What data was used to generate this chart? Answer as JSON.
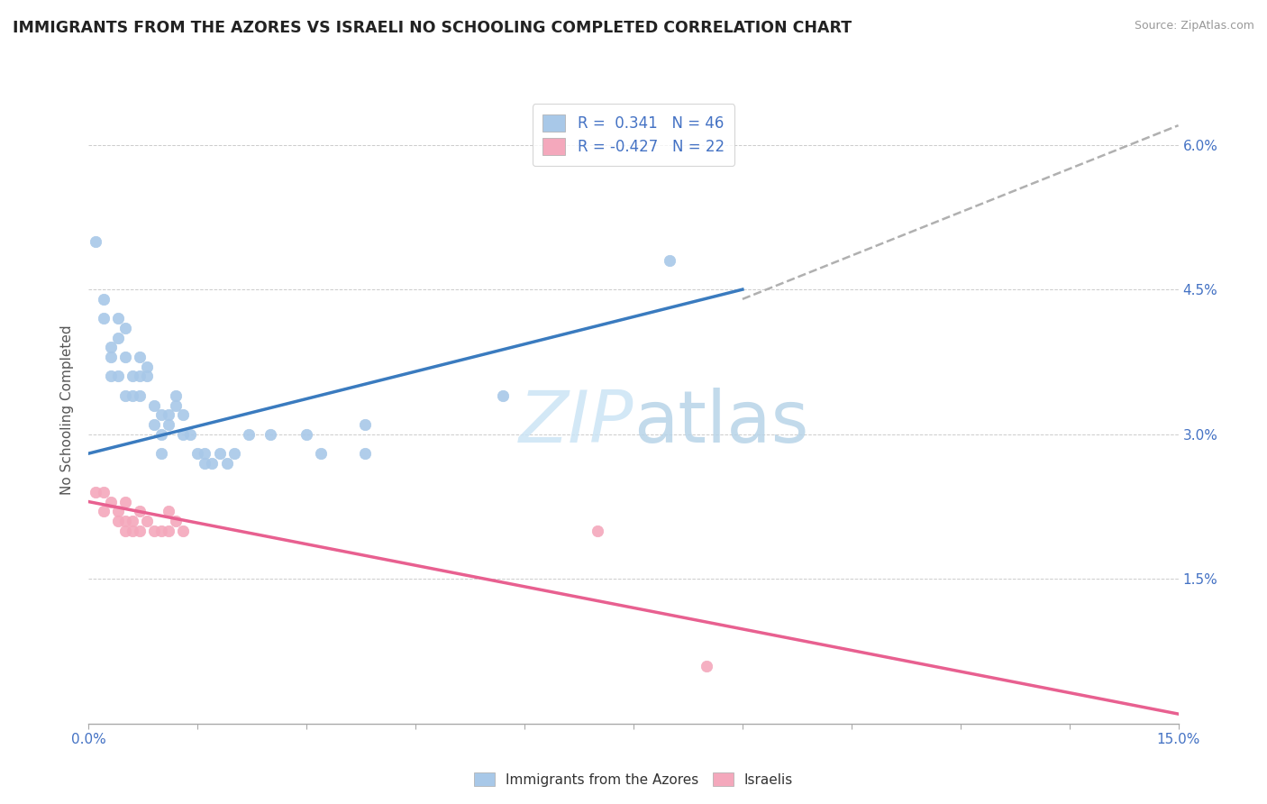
{
  "title": "IMMIGRANTS FROM THE AZORES VS ISRAELI NO SCHOOLING COMPLETED CORRELATION CHART",
  "source": "Source: ZipAtlas.com",
  "ylabel": "No Schooling Completed",
  "xlim": [
    0.0,
    0.15
  ],
  "ylim": [
    0.0,
    0.065
  ],
  "xticks": [
    0.0,
    0.015,
    0.03,
    0.045,
    0.06,
    0.075,
    0.09,
    0.105,
    0.12,
    0.135,
    0.15
  ],
  "yticks": [
    0.0,
    0.015,
    0.03,
    0.045,
    0.06
  ],
  "r_azores": 0.341,
  "n_azores": 46,
  "r_israeli": -0.427,
  "n_israeli": 22,
  "blue_color": "#a8c8e8",
  "pink_color": "#f4a8bc",
  "blue_line_color": "#3a7bbf",
  "pink_line_color": "#e86090",
  "gray_line_color": "#b0b0b0",
  "blue_line_x0": 0.0,
  "blue_line_y0": 0.028,
  "blue_line_x1": 0.09,
  "blue_line_y1": 0.045,
  "pink_line_x0": 0.0,
  "pink_line_y0": 0.023,
  "pink_line_x1": 0.15,
  "pink_line_y1": 0.001,
  "gray_line_x0": 0.09,
  "gray_line_y0": 0.044,
  "gray_line_x1": 0.15,
  "gray_line_y1": 0.062,
  "azores_scatter": [
    [
      0.001,
      0.05
    ],
    [
      0.002,
      0.044
    ],
    [
      0.002,
      0.042
    ],
    [
      0.003,
      0.039
    ],
    [
      0.003,
      0.038
    ],
    [
      0.003,
      0.036
    ],
    [
      0.004,
      0.042
    ],
    [
      0.004,
      0.04
    ],
    [
      0.004,
      0.036
    ],
    [
      0.005,
      0.041
    ],
    [
      0.005,
      0.038
    ],
    [
      0.005,
      0.034
    ],
    [
      0.006,
      0.036
    ],
    [
      0.006,
      0.034
    ],
    [
      0.007,
      0.038
    ],
    [
      0.007,
      0.036
    ],
    [
      0.007,
      0.034
    ],
    [
      0.008,
      0.037
    ],
    [
      0.008,
      0.036
    ],
    [
      0.009,
      0.033
    ],
    [
      0.009,
      0.031
    ],
    [
      0.01,
      0.032
    ],
    [
      0.01,
      0.03
    ],
    [
      0.01,
      0.028
    ],
    [
      0.011,
      0.032
    ],
    [
      0.011,
      0.031
    ],
    [
      0.012,
      0.034
    ],
    [
      0.012,
      0.033
    ],
    [
      0.013,
      0.032
    ],
    [
      0.013,
      0.03
    ],
    [
      0.014,
      0.03
    ],
    [
      0.015,
      0.028
    ],
    [
      0.016,
      0.028
    ],
    [
      0.016,
      0.027
    ],
    [
      0.017,
      0.027
    ],
    [
      0.018,
      0.028
    ],
    [
      0.019,
      0.027
    ],
    [
      0.02,
      0.028
    ],
    [
      0.022,
      0.03
    ],
    [
      0.025,
      0.03
    ],
    [
      0.03,
      0.03
    ],
    [
      0.032,
      0.028
    ],
    [
      0.038,
      0.031
    ],
    [
      0.038,
      0.028
    ],
    [
      0.057,
      0.034
    ],
    [
      0.08,
      0.048
    ]
  ],
  "israeli_scatter": [
    [
      0.001,
      0.024
    ],
    [
      0.002,
      0.024
    ],
    [
      0.002,
      0.022
    ],
    [
      0.003,
      0.023
    ],
    [
      0.004,
      0.022
    ],
    [
      0.004,
      0.021
    ],
    [
      0.005,
      0.023
    ],
    [
      0.005,
      0.021
    ],
    [
      0.005,
      0.02
    ],
    [
      0.006,
      0.021
    ],
    [
      0.006,
      0.02
    ],
    [
      0.007,
      0.02
    ],
    [
      0.007,
      0.022
    ],
    [
      0.008,
      0.021
    ],
    [
      0.009,
      0.02
    ],
    [
      0.01,
      0.02
    ],
    [
      0.011,
      0.022
    ],
    [
      0.011,
      0.02
    ],
    [
      0.012,
      0.021
    ],
    [
      0.013,
      0.02
    ],
    [
      0.07,
      0.02
    ],
    [
      0.085,
      0.006
    ]
  ]
}
